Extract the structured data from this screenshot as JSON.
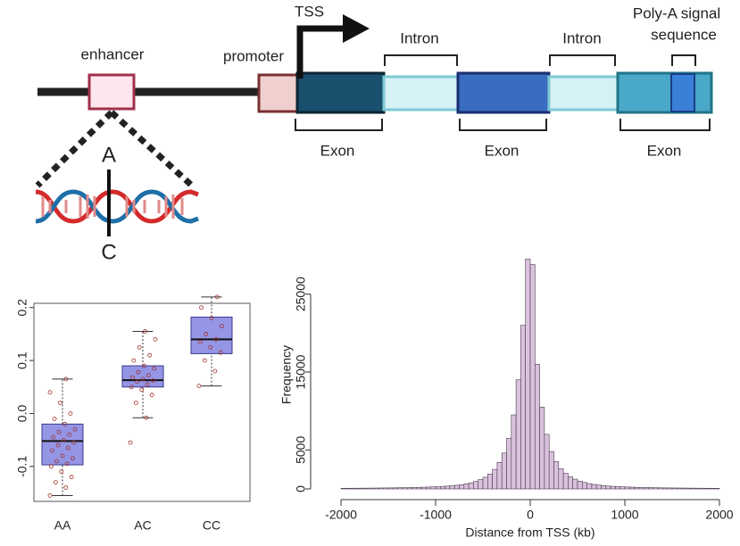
{
  "diagram": {
    "tss": "TSS",
    "introns": [
      "Intron",
      "Intron"
    ],
    "poly_a": [
      "Poly-A signal",
      "sequence"
    ],
    "enhancer": "enhancer",
    "promoter": "promoter",
    "exons": [
      "Exon",
      "Exon",
      "Exon"
    ],
    "alleles": [
      "A",
      "C"
    ]
  },
  "chart_data": [
    {
      "type": "box",
      "categories": [
        "AA",
        "AC",
        "CC"
      ],
      "boxes": [
        {
          "low": -0.155,
          "q1": -0.097,
          "median": -0.052,
          "q3": -0.02,
          "high": 0.065
        },
        {
          "low": -0.008,
          "q1": 0.05,
          "median": 0.063,
          "q3": 0.09,
          "high": 0.155
        },
        {
          "low": 0.052,
          "q1": 0.113,
          "median": 0.14,
          "q3": 0.182,
          "high": 0.22
        }
      ],
      "points": [
        [
          -0.155,
          -0.14,
          -0.13,
          -0.12,
          -0.11,
          -0.1,
          -0.095,
          -0.09,
          -0.085,
          -0.08,
          -0.07,
          -0.065,
          -0.06,
          -0.055,
          -0.05,
          -0.045,
          -0.04,
          -0.035,
          -0.03,
          -0.02,
          -0.01,
          0.0,
          0.02,
          0.04,
          0.065
        ],
        [
          -0.055,
          -0.008,
          0.02,
          0.035,
          0.045,
          0.05,
          0.055,
          0.06,
          0.062,
          0.065,
          0.068,
          0.072,
          0.078,
          0.085,
          0.09,
          0.1,
          0.11,
          0.125,
          0.14,
          0.155
        ],
        [
          0.052,
          0.08,
          0.1,
          0.115,
          0.125,
          0.135,
          0.14,
          0.15,
          0.165,
          0.18,
          0.2,
          0.22
        ]
      ],
      "color": "#9595e6",
      "point_color": "#a0302a",
      "ylim": [
        -0.166,
        0.208
      ],
      "yticks": [
        -0.1,
        {
          "value": 0,
          "label": "0.0"
        },
        0.1,
        0.2
      ]
    },
    {
      "type": "histogram",
      "x_label": "Distance from TSS (kb)",
      "y_label": "Frequency",
      "color": "#d9c2dc",
      "bins": [
        -2000,
        -1950,
        -1900,
        -1850,
        -1800,
        -1750,
        -1700,
        -1650,
        -1600,
        -1550,
        -1500,
        -1450,
        -1400,
        -1350,
        -1300,
        -1250,
        -1200,
        -1150,
        -1100,
        -1050,
        -1000,
        -950,
        -900,
        -850,
        -800,
        -750,
        -700,
        -650,
        -600,
        -550,
        -500,
        -450,
        -400,
        -350,
        -300,
        -250,
        -200,
        -150,
        -100,
        -50,
        0,
        50,
        100,
        150,
        200,
        250,
        300,
        350,
        400,
        450,
        500,
        550,
        600,
        650,
        700,
        750,
        800,
        850,
        900,
        950,
        1000,
        1050,
        1100,
        1150,
        1200,
        1250,
        1300,
        1350,
        1400,
        1450,
        1500,
        1550,
        1600,
        1650,
        1700,
        1750,
        1800,
        1850,
        1900,
        1950,
        2000
      ],
      "values": [
        78,
        82,
        86,
        90,
        95,
        100,
        106,
        112,
        118,
        125,
        132,
        140,
        150,
        160,
        170,
        185,
        200,
        220,
        240,
        260,
        290,
        320,
        360,
        410,
        470,
        550,
        650,
        780,
        950,
        1200,
        1500,
        1900,
        2500,
        3400,
        4600,
        6500,
        9500,
        14000,
        21000,
        29500,
        28800,
        16000,
        10500,
        7000,
        4800,
        3500,
        2600,
        2000,
        1550,
        1250,
        1000,
        820,
        680,
        570,
        490,
        420,
        370,
        330,
        295,
        265,
        245,
        225,
        205,
        190,
        175,
        162,
        152,
        142,
        134,
        126,
        119,
        113,
        107,
        101,
        96,
        91,
        87,
        83,
        79,
        75
      ],
      "xlim": [
        -2000,
        2000
      ],
      "xticks": [
        -2000,
        -1000,
        0,
        1000,
        2000
      ],
      "ylim": [
        0,
        30000
      ],
      "yticks": [
        0,
        5000,
        15000,
        25000
      ]
    }
  ]
}
